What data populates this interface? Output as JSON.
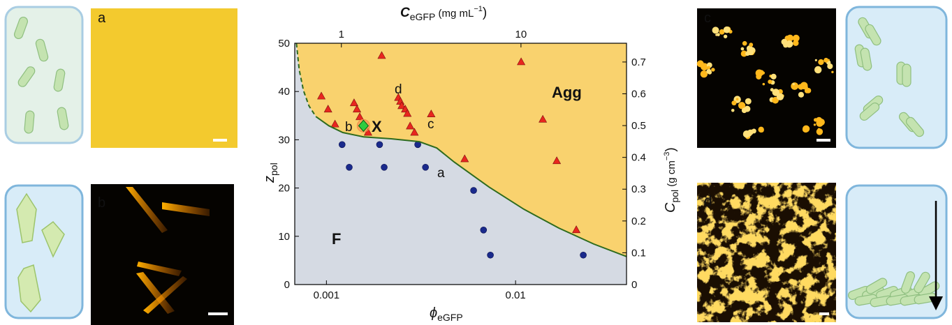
{
  "chart_data": {
    "type": "scatter",
    "xscale": "log",
    "xlabel": [
      "ϕ",
      "eGFP"
    ],
    "ylabel": [
      "z",
      "pol"
    ],
    "x2label": [
      "C",
      "eGFP",
      " (mg mL",
      "−1",
      ")"
    ],
    "y2label": [
      "C",
      "pol",
      " (g cm",
      "−3",
      ")"
    ],
    "xlim": [
      0.00068,
      0.0386
    ],
    "xticks": [
      0.001,
      0.01
    ],
    "x2lim": [
      0.55,
      38.7
    ],
    "x2ticks": [
      1,
      10
    ],
    "ylim": [
      0,
      50
    ],
    "yticks": [
      0,
      10,
      20,
      30,
      40,
      50
    ],
    "y2lim": [
      0,
      0.759
    ],
    "y2ticks": [
      0,
      0.1,
      0.2,
      0.3,
      0.4,
      0.5,
      0.6,
      0.7
    ],
    "series": [
      {
        "marker": "triangle",
        "color": "#e8261e",
        "x": [
          0.00094,
          0.00102,
          0.00111,
          0.0014,
          0.00145,
          0.0015,
          0.00166,
          0.00196,
          0.0024,
          0.00246,
          0.0025,
          0.00261,
          0.00268,
          0.00277,
          0.00292,
          0.00358,
          0.00538,
          0.0107,
          0.01393,
          0.01651,
          0.02094
        ],
        "y": [
          39.0,
          36.3,
          33.2,
          37.6,
          36.3,
          34.7,
          31.5,
          47.4,
          38.7,
          37.9,
          37.0,
          36.3,
          35.4,
          32.8,
          31.5,
          35.3,
          26.0,
          46.1,
          34.2,
          25.6,
          11.3
        ]
      },
      {
        "marker": "circle",
        "color": "#1a2a8c",
        "x": [
          0.00121,
          0.00132,
          0.00191,
          0.00202,
          0.00304,
          0.00334,
          0.006,
          0.00677,
          0.00736,
          0.0228
        ],
        "y": [
          29.0,
          24.3,
          29.0,
          24.3,
          29.0,
          24.3,
          19.5,
          11.3,
          6.1,
          6.1
        ]
      },
      {
        "marker": "dashed-line",
        "color": "#2e6b1e",
        "x": [
          0.000694,
          0.000718,
          0.000756,
          0.000809,
          0.00088
        ],
        "y": [
          50,
          44.5,
          40.2,
          37.0,
          34.8
        ]
      },
      {
        "marker": "line",
        "color": "#2e6b1e",
        "x": [
          0.00088,
          0.00103,
          0.00122,
          0.00157,
          0.0022,
          0.0031,
          0.00383,
          0.00473,
          0.00724,
          0.01107,
          0.01693,
          0.0259,
          0.0386
        ],
        "y": [
          34.8,
          32.9,
          31.5,
          30.6,
          30.2,
          29.6,
          28.3,
          25.4,
          20.2,
          15.6,
          11.7,
          8.4,
          5.8
        ]
      }
    ],
    "special_point": {
      "x": 0.00157,
      "y": 32.9,
      "color": "#2ecc40",
      "ring_color": "#f08a4b"
    },
    "region_colors": {
      "agg": "#f9d26e",
      "fluid": "#d5dae3"
    },
    "annotations": [
      "Agg",
      "F",
      "a",
      "b",
      "c",
      "d",
      "X"
    ],
    "panels": [
      "a",
      "b",
      "c",
      "d"
    ]
  }
}
